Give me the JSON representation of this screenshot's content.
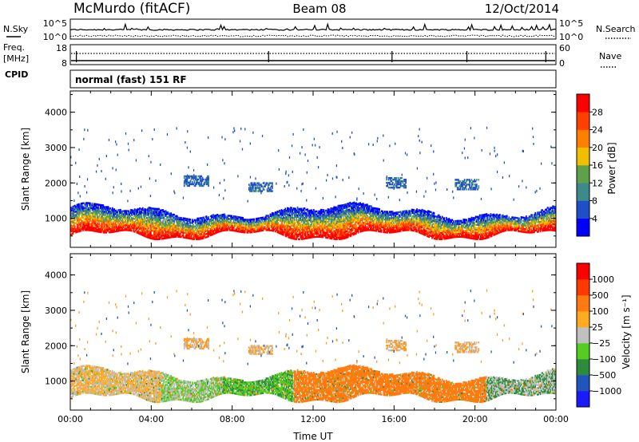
{
  "header": {
    "station": "McMurdo (fitACF)",
    "beam": "Beam 08",
    "date": "12/Oct/2014"
  },
  "top_panel": {
    "nsky_label": "N.Sky",
    "nsearch_label": "N.Search",
    "noise_ticks_left": [
      "10^5",
      "10^0"
    ],
    "noise_ticks_right": [
      "10^5",
      "10^0"
    ],
    "freq_label": "Freq.",
    "freq_unit": "[MHz]",
    "freq_ticks": [
      "18",
      "8"
    ],
    "nave_label": "Nave",
    "nave_ticks": [
      "60",
      "0"
    ],
    "cpid_label": "CPID",
    "cpid_text": "normal (fast) 151 RF"
  },
  "chart_data": [
    {
      "type": "heatmap",
      "name": "power",
      "ylabel": "Slant Range [km]",
      "ylim": [
        180,
        4600
      ],
      "yticks": [
        "1000",
        "2000",
        "3000",
        "4000"
      ],
      "xlim": [
        "00:00",
        "24:00"
      ],
      "colorbar": {
        "label": "Power [dB]",
        "levels": [
          0,
          4,
          8,
          12,
          16,
          20,
          24,
          28,
          32
        ],
        "tick_labels": [
          "4",
          "8",
          "12",
          "16",
          "20",
          "24",
          "28"
        ],
        "colors": [
          "#0000ff",
          "#1f4fc8",
          "#3e8a8a",
          "#5fa04a",
          "#f0c000",
          "#ff8000",
          "#ff4000",
          "#ff0000"
        ]
      }
    },
    {
      "type": "heatmap",
      "name": "velocity",
      "ylabel": "Slant Range [km]",
      "xlabel": "Time UT",
      "ylim": [
        180,
        4600
      ],
      "yticks": [
        "1000",
        "2000",
        "3000",
        "4000"
      ],
      "xticks": [
        "00:00",
        "04:00",
        "08:00",
        "12:00",
        "16:00",
        "20:00",
        "00:00"
      ],
      "colorbar": {
        "label": "Velocity [m s⁻¹]",
        "tick_labels": [
          "1000",
          "500",
          "100",
          "25",
          "−25",
          "−100",
          "−500",
          "−1000"
        ],
        "colors": [
          "#1a1aff",
          "#2255bb",
          "#2e8b3e",
          "#55cc22",
          "#c0c0c0",
          "#ffaa20",
          "#ff7a10",
          "#ff3a00",
          "#ff0000"
        ]
      }
    }
  ]
}
